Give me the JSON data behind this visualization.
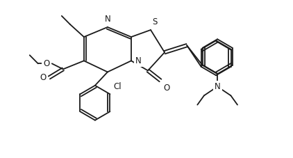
{
  "background": "#ffffff",
  "line_color": "#1a1a1a",
  "line_width": 1.3,
  "font_size": 8.5,
  "figsize": [
    4.22,
    2.27
  ],
  "dpi": 100,
  "xlim": [
    0,
    10.5
  ],
  "ylim": [
    0,
    5.6
  ]
}
